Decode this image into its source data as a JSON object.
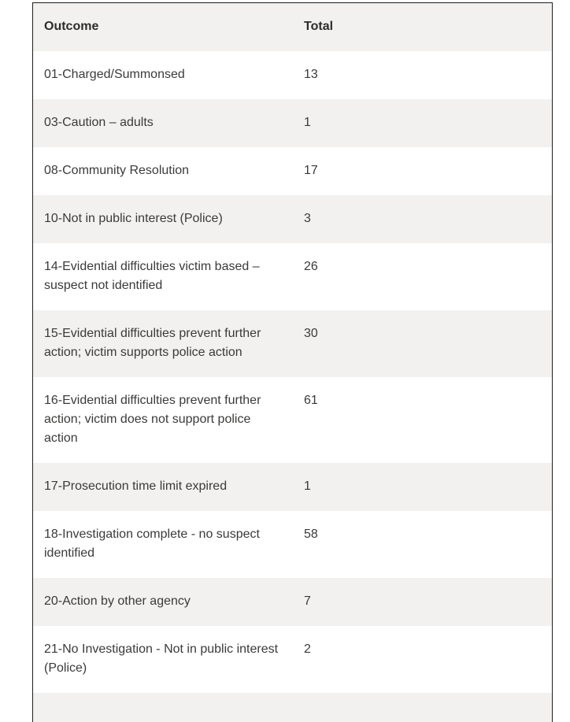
{
  "table": {
    "columns": [
      {
        "key": "outcome",
        "label": "Outcome"
      },
      {
        "key": "total",
        "label": "Total"
      }
    ],
    "rows": [
      {
        "outcome": "01-Charged/Summonsed",
        "total": "13"
      },
      {
        "outcome": "03-Caution – adults",
        "total": "1"
      },
      {
        "outcome": "08-Community Resolution",
        "total": "17"
      },
      {
        "outcome": "10-Not in public interest (Police)",
        "total": "3"
      },
      {
        "outcome": "14-Evidential difficulties victim based – suspect not identified",
        "total": "26"
      },
      {
        "outcome": "15-Evidential difficulties prevent further action; victim supports police action",
        "total": "30"
      },
      {
        "outcome": "16-Evidential difficulties prevent further action; victim does not support police action",
        "total": "61"
      },
      {
        "outcome": "17-Prosecution time limit expired",
        "total": "1"
      },
      {
        "outcome": "18-Investigation complete - no suspect identified",
        "total": "58"
      },
      {
        "outcome": "20-Action by other agency",
        "total": "7"
      },
      {
        "outcome": "21-No Investigation - Not in public interest (Police)",
        "total": "2"
      }
    ],
    "has_partial_next_row": true
  },
  "colors": {
    "stripe_background": "#f2f1ef",
    "table_border": "#1e1e1e",
    "body_text": "#3b3a39",
    "header_text": "#2d2c2b",
    "page_background": "#ffffff"
  }
}
